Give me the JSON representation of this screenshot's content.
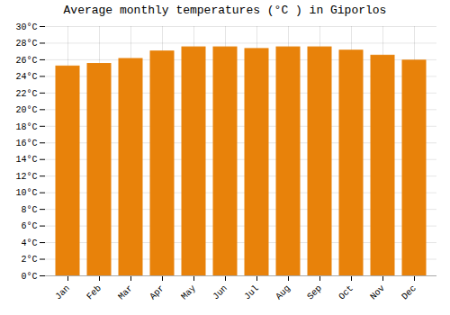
{
  "chart_data": {
    "type": "bar",
    "title": "Average monthly temperatures (°C ) in Giporlos",
    "categories": [
      "Jan",
      "Feb",
      "Mar",
      "Apr",
      "May",
      "Jun",
      "Jul",
      "Aug",
      "Sep",
      "Oct",
      "Nov",
      "Dec"
    ],
    "values": [
      25.2,
      25.5,
      26.1,
      27.0,
      27.5,
      27.5,
      27.3,
      27.5,
      27.5,
      27.1,
      26.5,
      25.9
    ],
    "color": "#E8820A",
    "ylim": [
      0,
      30
    ],
    "yticks": [
      {
        "value": 0,
        "label": "0°C"
      },
      {
        "value": 2,
        "label": "2°C"
      },
      {
        "value": 4,
        "label": "4°C"
      },
      {
        "value": 6,
        "label": "6°C"
      },
      {
        "value": 8,
        "label": "8°C"
      },
      {
        "value": 10,
        "label": "10°C"
      },
      {
        "value": 12,
        "label": "12°C"
      },
      {
        "value": 14,
        "label": "14°C"
      },
      {
        "value": 16,
        "label": "16°C"
      },
      {
        "value": 18,
        "label": "18°C"
      },
      {
        "value": 20,
        "label": "20°C"
      },
      {
        "value": 22,
        "label": "22°C"
      },
      {
        "value": 24,
        "label": "24°C"
      },
      {
        "value": 26,
        "label": "26°C"
      },
      {
        "value": 28,
        "label": "28°C"
      },
      {
        "value": 30,
        "label": "30°C"
      }
    ],
    "grid": true
  }
}
